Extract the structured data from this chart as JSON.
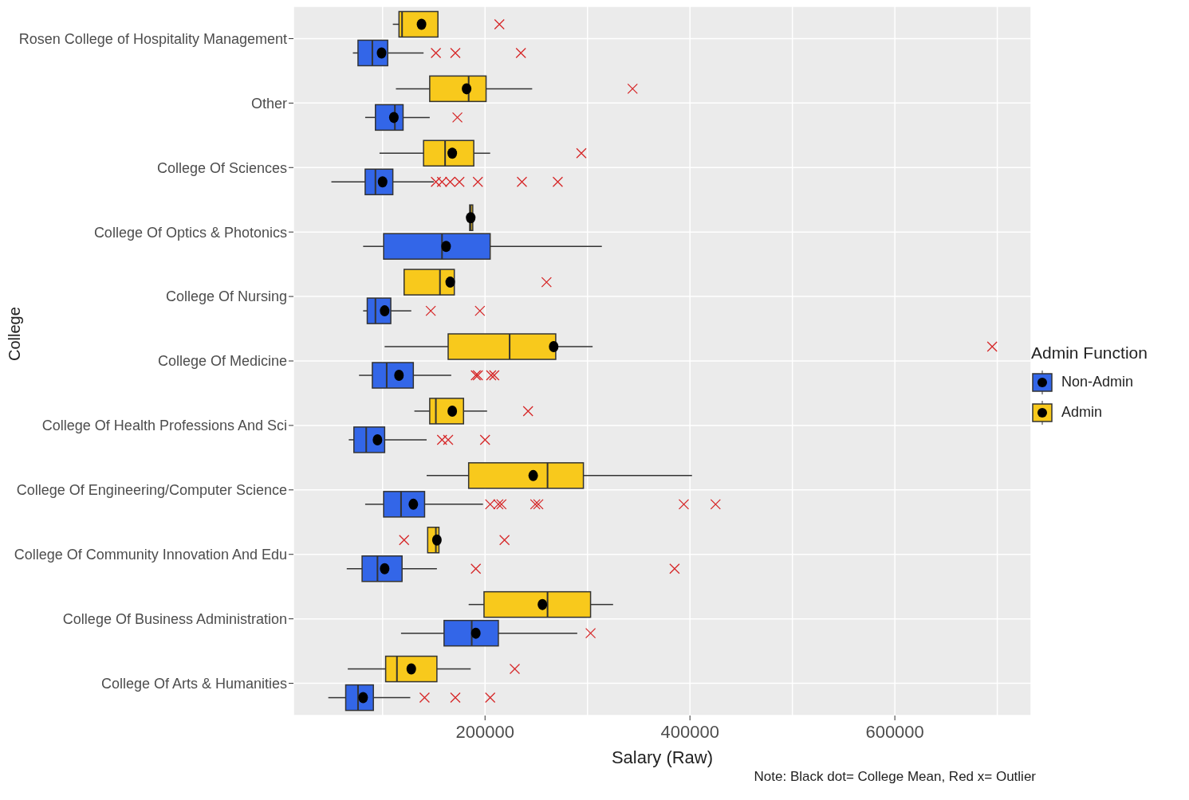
{
  "chart_data": {
    "type": "box",
    "orientation": "horizontal",
    "xlabel": "Salary (Raw)",
    "ylabel": "College",
    "legend_title": "Admin Function",
    "legend": "right",
    "grid": true,
    "annotations": [
      "Note: Black dot= College Mean, Red x= Outlier"
    ],
    "categories": [
      "Rosen College of Hospitality Management",
      "Other",
      "College Of Sciences",
      "College Of Optics & Photonics",
      "College Of Nursing",
      "College Of Medicine",
      "College Of Health Professions And Sci",
      "College Of Engineering/Computer Science",
      "College Of Community Innovation And Edu",
      "College Of Business Administration",
      "College Of Arts & Humanities"
    ],
    "xlim": [
      13000,
      733000
    ],
    "xticks": [
      {
        "value": 100000,
        "label": null
      },
      200000,
      {
        "value": 300000,
        "label": null
      },
      400000,
      {
        "value": 500000,
        "label": null
      },
      600000,
      {
        "value": 700000,
        "label": null
      }
    ],
    "series": [
      {
        "name": "Non-Admin",
        "color": "#3366e8",
        "boxes": [
          {
            "low": 71000,
            "q1": 76000,
            "median": 90000,
            "q3": 105000,
            "high": 140000,
            "mean": 99000,
            "outliers": [
              152000,
              171000,
              235000
            ]
          },
          {
            "low": 83000,
            "q1": 93000,
            "median": 112000,
            "q3": 120000,
            "high": 146000,
            "mean": 111000,
            "outliers": [
              173000
            ]
          },
          {
            "low": 50000,
            "q1": 83000,
            "median": 93000,
            "q3": 110000,
            "high": 150000,
            "mean": 100000,
            "outliers": [
              152000,
              158000,
              166000,
              175000,
              193000,
              236000,
              271000
            ]
          },
          {
            "low": 81000,
            "q1": 101000,
            "median": 158000,
            "q3": 205000,
            "high": 314000,
            "mean": 162000
          },
          {
            "low": 81000,
            "q1": 85000,
            "median": 93000,
            "q3": 108000,
            "high": 128000,
            "mean": 102000,
            "outliers": [
              147000,
              195000
            ]
          },
          {
            "low": 77000,
            "q1": 90000,
            "median": 104000,
            "q3": 130000,
            "high": 167000,
            "mean": 116000,
            "outliers": [
              191000,
              193000,
              206000,
              209000
            ]
          },
          {
            "low": 67000,
            "q1": 72000,
            "median": 84000,
            "q3": 102000,
            "high": 143000,
            "mean": 95000,
            "outliers": [
              158000,
              164000,
              200000
            ]
          },
          {
            "low": 83000,
            "q1": 101000,
            "median": 118000,
            "q3": 141000,
            "high": 198000,
            "mean": 130000,
            "outliers": [
              205000,
              213000,
              216000,
              249000,
              252000,
              394000,
              425000
            ]
          },
          {
            "low": 65000,
            "q1": 80000,
            "median": 95000,
            "q3": 119000,
            "high": 153000,
            "mean": 102000,
            "outliers": [
              191000,
              385000
            ]
          },
          {
            "low": 118000,
            "q1": 160000,
            "median": 187000,
            "q3": 213000,
            "high": 290000,
            "mean": 191000,
            "outliers": [
              303000
            ]
          },
          {
            "low": 47000,
            "q1": 64000,
            "median": 76000,
            "q3": 91000,
            "high": 127000,
            "mean": 81000,
            "outliers": [
              141000,
              171000,
              205000
            ]
          }
        ]
      },
      {
        "name": "Admin",
        "color": "#f8c91c",
        "boxes": [
          {
            "low": 110000,
            "q1": 116000,
            "median": 119000,
            "q3": 154000,
            "high": 154000,
            "mean": 138000,
            "outliers": [
              214000
            ]
          },
          {
            "low": 113000,
            "q1": 146000,
            "median": 184000,
            "q3": 201000,
            "high": 246000,
            "mean": 182000,
            "outliers": [
              344000
            ]
          },
          {
            "low": 97000,
            "q1": 140000,
            "median": 161000,
            "q3": 189000,
            "high": 205000,
            "mean": 168000,
            "outliers": [
              294000
            ]
          },
          {
            "low": 185000,
            "q1": 185000,
            "median": 186000,
            "q3": 188000,
            "high": 188000,
            "mean": 186000
          },
          {
            "low": 121000,
            "q1": 121000,
            "median": 156000,
            "q3": 170000,
            "high": 170000,
            "mean": 166000,
            "outliers": [
              260000
            ]
          },
          {
            "low": 102000,
            "q1": 164000,
            "median": 224000,
            "q3": 269000,
            "high": 305000,
            "mean": 267000,
            "outliers": [
              695000
            ]
          },
          {
            "low": 131000,
            "q1": 146000,
            "median": 152000,
            "q3": 179000,
            "high": 202000,
            "mean": 168000,
            "outliers": [
              242000
            ]
          },
          {
            "low": 143000,
            "q1": 184000,
            "median": 261000,
            "q3": 296000,
            "high": 402000,
            "mean": 247000
          },
          {
            "low": 144000,
            "q1": 144000,
            "median": 152000,
            "q3": 155000,
            "high": 155000,
            "mean": 153000,
            "outliers": [
              121000,
              219000
            ]
          },
          {
            "low": 184000,
            "q1": 199000,
            "median": 261000,
            "q3": 303000,
            "high": 325000,
            "mean": 256000
          },
          {
            "low": 66000,
            "q1": 103000,
            "median": 114000,
            "q3": 153000,
            "high": 186000,
            "mean": 128000,
            "outliers": [
              229000
            ]
          }
        ]
      }
    ]
  }
}
